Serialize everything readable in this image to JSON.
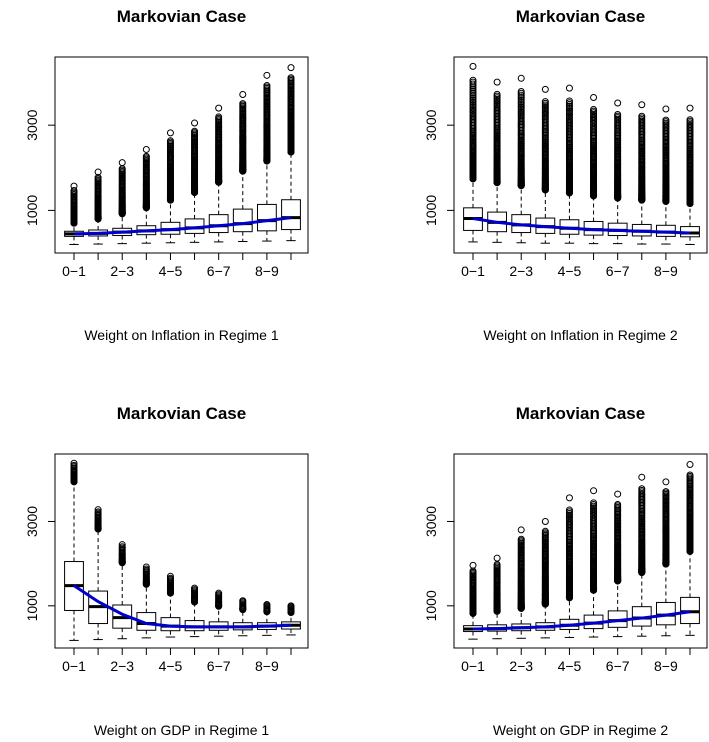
{
  "chart_data": [
    {
      "type": "box",
      "title": "Markovian Case",
      "xlabel": "Weight on Inflation in Regime 1",
      "ylabel": "",
      "ylim": [
        0,
        4600
      ],
      "yticks": [
        1000,
        3000
      ],
      "ytick_labels": [
        "1000",
        "3000"
      ],
      "categories": [
        "0-1",
        "1-2",
        "2-3",
        "3-4",
        "4-5",
        "5-6",
        "6-7",
        "7-8",
        "8-9",
        "9-10"
      ],
      "xtick_labels": [
        "0−1",
        "2−3",
        "4−5",
        "6−7",
        "8−9"
      ],
      "boxes": [
        {
          "low": 200,
          "q1": 390,
          "median": 450,
          "q3": 510,
          "whisk": 660,
          "max": 1570
        },
        {
          "low": 210,
          "q1": 400,
          "median": 460,
          "q3": 540,
          "whisk": 760,
          "max": 1900
        },
        {
          "low": 220,
          "q1": 410,
          "median": 490,
          "q3": 580,
          "whisk": 880,
          "max": 2120
        },
        {
          "low": 230,
          "q1": 430,
          "median": 520,
          "q3": 640,
          "whisk": 1020,
          "max": 2430
        },
        {
          "low": 240,
          "q1": 440,
          "median": 550,
          "q3": 720,
          "whisk": 1200,
          "max": 2820
        },
        {
          "low": 250,
          "q1": 460,
          "median": 590,
          "q3": 800,
          "whisk": 1380,
          "max": 3050
        },
        {
          "low": 260,
          "q1": 480,
          "median": 640,
          "q3": 900,
          "whisk": 1620,
          "max": 3400
        },
        {
          "low": 270,
          "q1": 500,
          "median": 690,
          "q3": 1030,
          "whisk": 1880,
          "max": 3720
        },
        {
          "low": 280,
          "q1": 520,
          "median": 760,
          "q3": 1140,
          "whisk": 2120,
          "max": 4170
        },
        {
          "low": 290,
          "q1": 550,
          "median": 830,
          "q3": 1250,
          "whisk": 2330,
          "max": 4350
        }
      ],
      "mean_line": [
        450,
        460,
        490,
        520,
        550,
        590,
        640,
        690,
        760,
        830
      ],
      "mean_color": "#0000cc"
    },
    {
      "type": "box",
      "title": "Markovian Case",
      "xlabel": "Weight on Inflation in Regime 2",
      "ylabel": "",
      "ylim": [
        0,
        4600
      ],
      "yticks": [
        1000,
        3000
      ],
      "ytick_labels": [
        "1000",
        "3000"
      ],
      "categories": [
        "0-1",
        "1-2",
        "2-3",
        "3-4",
        "4-5",
        "5-6",
        "6-7",
        "7-8",
        "8-9",
        "9-10"
      ],
      "xtick_labels": [
        "0−1",
        "2−3",
        "4−5",
        "6−7",
        "8−9"
      ],
      "boxes": [
        {
          "low": 260,
          "q1": 530,
          "median": 810,
          "q3": 1060,
          "whisk": 1700,
          "max": 4380
        },
        {
          "low": 250,
          "q1": 500,
          "median": 720,
          "q3": 960,
          "whisk": 1610,
          "max": 4010
        },
        {
          "low": 240,
          "q1": 480,
          "median": 660,
          "q3": 900,
          "whisk": 1540,
          "max": 4100
        },
        {
          "low": 230,
          "q1": 460,
          "median": 620,
          "q3": 820,
          "whisk": 1440,
          "max": 3840
        },
        {
          "low": 230,
          "q1": 440,
          "median": 580,
          "q3": 780,
          "whisk": 1370,
          "max": 3870
        },
        {
          "low": 220,
          "q1": 420,
          "median": 550,
          "q3": 740,
          "whisk": 1300,
          "max": 3650
        },
        {
          "low": 220,
          "q1": 410,
          "median": 530,
          "q3": 700,
          "whisk": 1250,
          "max": 3520
        },
        {
          "low": 210,
          "q1": 400,
          "median": 510,
          "q3": 670,
          "whisk": 1200,
          "max": 3480
        },
        {
          "low": 210,
          "q1": 390,
          "median": 490,
          "q3": 650,
          "whisk": 1170,
          "max": 3380
        },
        {
          "low": 200,
          "q1": 380,
          "median": 470,
          "q3": 620,
          "whisk": 1120,
          "max": 3400
        }
      ],
      "mean_line": [
        810,
        720,
        660,
        620,
        580,
        550,
        530,
        510,
        490,
        470
      ],
      "mean_color": "#0000cc"
    },
    {
      "type": "box",
      "title": "Markovian Case",
      "xlabel": "Weight on GDP in Regime 1",
      "ylabel": "",
      "ylim": [
        0,
        4600
      ],
      "yticks": [
        1000,
        3000
      ],
      "ytick_labels": [
        "1000",
        "3000"
      ],
      "categories": [
        "0-1",
        "1-2",
        "2-3",
        "3-4",
        "4-5",
        "5-6",
        "6-7",
        "7-8",
        "8-9",
        "9-10"
      ],
      "xtick_labels": [
        "0−1",
        "2−3",
        "4−5",
        "6−7",
        "8−9"
      ],
      "boxes": [
        {
          "low": 180,
          "q1": 890,
          "median": 1480,
          "q3": 2050,
          "whisk": 3900,
          "max": 4380
        },
        {
          "low": 200,
          "q1": 580,
          "median": 980,
          "q3": 1350,
          "whisk": 2780,
          "max": 3280
        },
        {
          "low": 220,
          "q1": 470,
          "median": 720,
          "q3": 1020,
          "whisk": 1980,
          "max": 2450
        },
        {
          "low": 240,
          "q1": 420,
          "median": 580,
          "q3": 840,
          "whisk": 1470,
          "max": 1920
        },
        {
          "low": 260,
          "q1": 410,
          "median": 520,
          "q3": 720,
          "whisk": 1260,
          "max": 1700
        },
        {
          "low": 270,
          "q1": 410,
          "median": 500,
          "q3": 650,
          "whisk": 1050,
          "max": 1420
        },
        {
          "low": 280,
          "q1": 420,
          "median": 500,
          "q3": 620,
          "whisk": 950,
          "max": 1300
        },
        {
          "low": 290,
          "q1": 430,
          "median": 500,
          "q3": 600,
          "whisk": 870,
          "max": 1120
        },
        {
          "low": 300,
          "q1": 440,
          "median": 520,
          "q3": 600,
          "whisk": 820,
          "max": 1030
        },
        {
          "low": 310,
          "q1": 450,
          "median": 540,
          "q3": 620,
          "whisk": 800,
          "max": 1000
        }
      ],
      "mean_line": [
        1480,
        1100,
        800,
        580,
        520,
        500,
        500,
        500,
        520,
        540
      ],
      "mean_color": "#0000cc"
    },
    {
      "type": "box",
      "title": "Markovian Case",
      "xlabel": "Weight on GDP in Regime 2",
      "ylabel": "",
      "ylim": [
        0,
        4600
      ],
      "yticks": [
        1000,
        3000
      ],
      "ytick_labels": [
        "1000",
        "3000"
      ],
      "categories": [
        "0-1",
        "1-2",
        "2-3",
        "3-4",
        "4-5",
        "5-6",
        "6-7",
        "7-8",
        "8-9",
        "9-10"
      ],
      "xtick_labels": [
        "0−1",
        "2−3",
        "4−5",
        "6−7",
        "8−9"
      ],
      "boxes": [
        {
          "low": 210,
          "q1": 390,
          "median": 450,
          "q3": 530,
          "whisk": 780,
          "max": 1960
        },
        {
          "low": 220,
          "q1": 400,
          "median": 460,
          "q3": 550,
          "whisk": 830,
          "max": 2130
        },
        {
          "low": 230,
          "q1": 410,
          "median": 480,
          "q3": 570,
          "whisk": 900,
          "max": 2800
        },
        {
          "low": 240,
          "q1": 420,
          "median": 500,
          "q3": 600,
          "whisk": 1000,
          "max": 3000
        },
        {
          "low": 250,
          "q1": 440,
          "median": 540,
          "q3": 680,
          "whisk": 1150,
          "max": 3560
        },
        {
          "low": 260,
          "q1": 460,
          "median": 590,
          "q3": 780,
          "whisk": 1330,
          "max": 3730
        },
        {
          "low": 270,
          "q1": 490,
          "median": 650,
          "q3": 880,
          "whisk": 1550,
          "max": 3650
        },
        {
          "low": 280,
          "q1": 520,
          "median": 710,
          "q3": 980,
          "whisk": 1750,
          "max": 4050
        },
        {
          "low": 290,
          "q1": 550,
          "median": 780,
          "q3": 1080,
          "whisk": 1950,
          "max": 3940
        },
        {
          "low": 300,
          "q1": 580,
          "median": 860,
          "q3": 1200,
          "whisk": 2250,
          "max": 4350
        }
      ],
      "mean_line": [
        450,
        460,
        480,
        500,
        540,
        590,
        650,
        710,
        780,
        860
      ],
      "mean_color": "#0000cc"
    }
  ]
}
